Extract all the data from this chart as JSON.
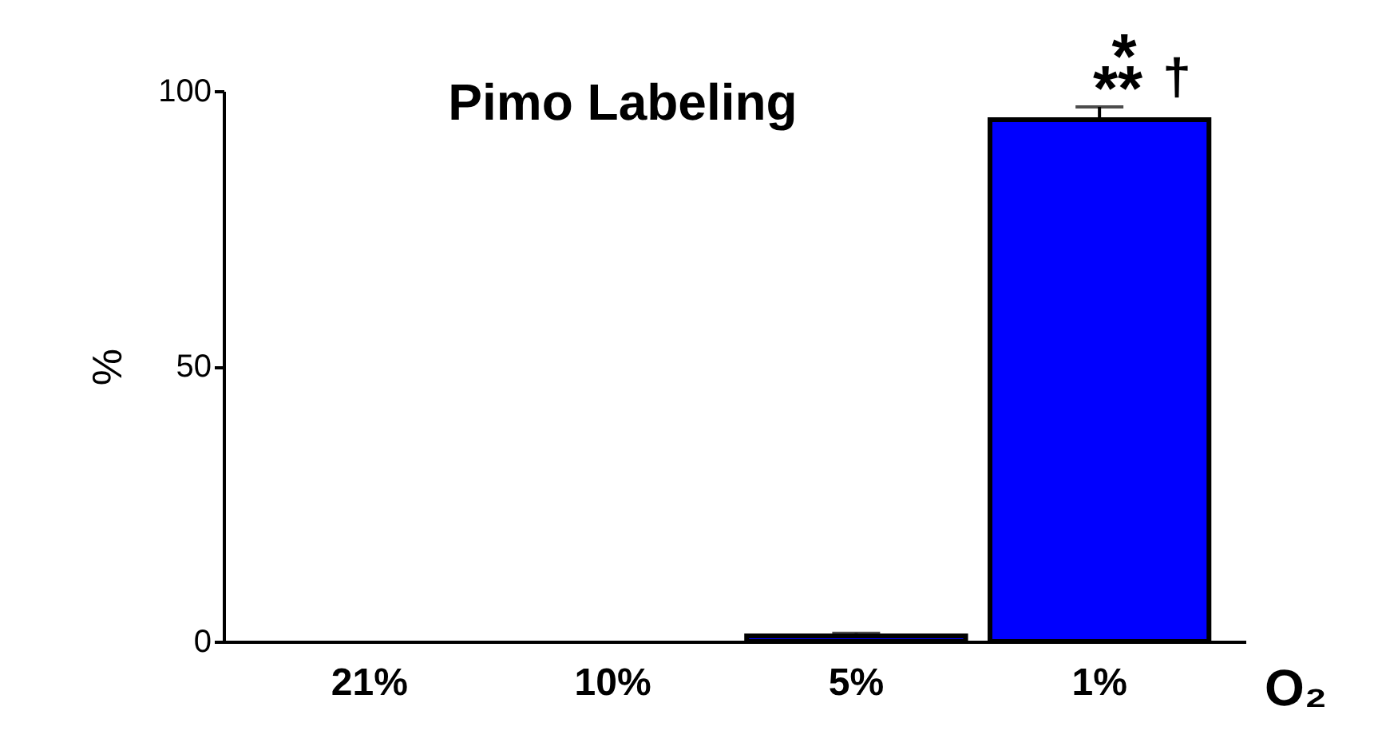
{
  "chart_data": {
    "type": "bar",
    "title": "Pimo Labeling",
    "ylabel": "%",
    "xlabel": "O₂",
    "categories": [
      "21%",
      "10%",
      "5%",
      "1%"
    ],
    "values": [
      0,
      0,
      1,
      94.8
    ],
    "errors": [
      null,
      null,
      0.5,
      2.3
    ],
    "color": "#0000ff",
    "ylim": [
      0,
      100
    ],
    "yticks": [
      0,
      50,
      100
    ],
    "grid": false,
    "annotations": [
      "**",
      "*",
      "†"
    ]
  }
}
